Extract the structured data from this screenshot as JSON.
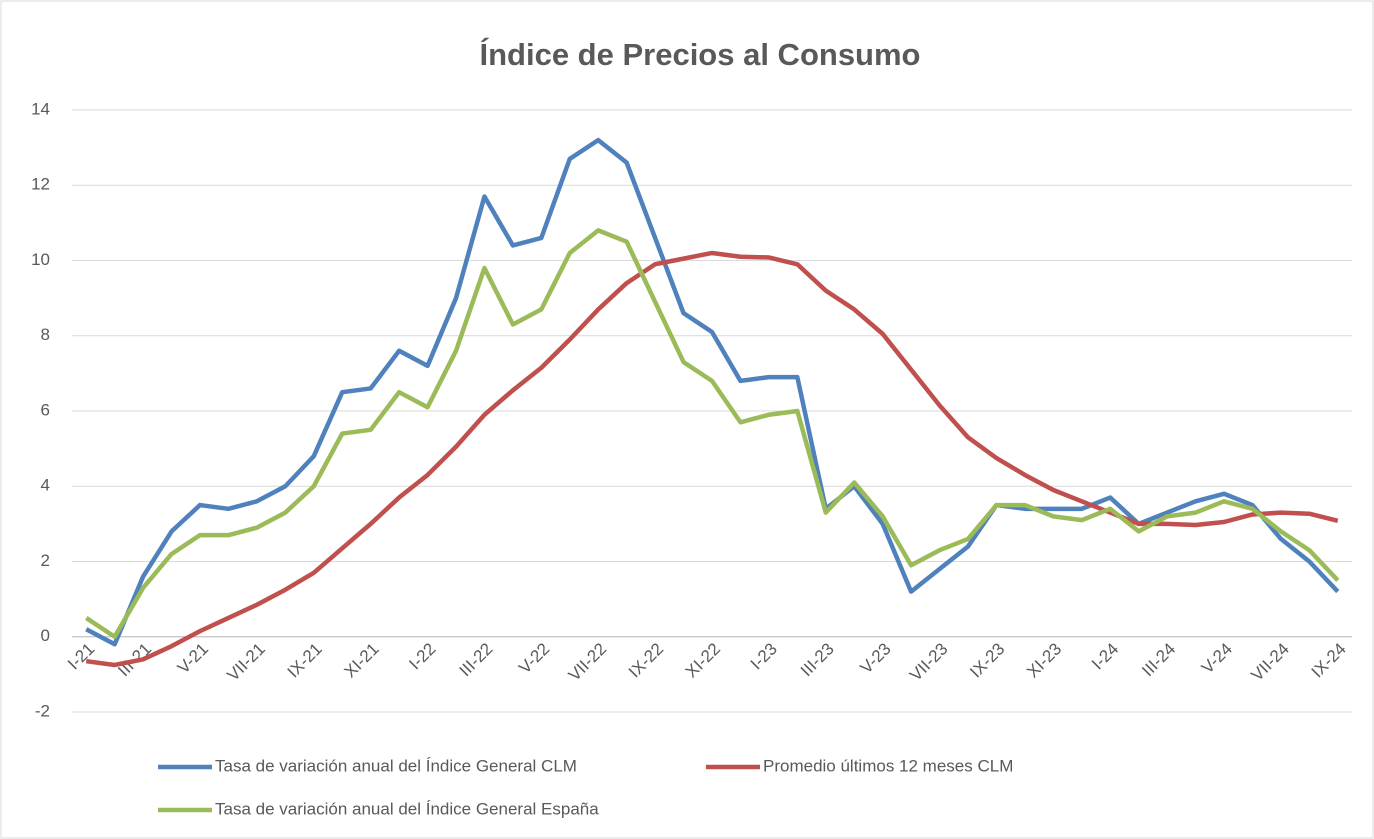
{
  "chart_data": {
    "type": "line",
    "title": "Índice de Precios al Consumo",
    "categories": [
      "I-21",
      null,
      "III-21",
      null,
      "V-21",
      null,
      "VII-21",
      null,
      "IX-21",
      null,
      "XI-21",
      null,
      "I-22",
      null,
      "III-22",
      null,
      "V-22",
      null,
      "VII-22",
      null,
      "IX-22",
      null,
      "XI-22",
      null,
      "I-23",
      null,
      "III-23",
      null,
      "V-23",
      null,
      "VII-23",
      null,
      "IX-23",
      null,
      "XI-23",
      null,
      "I-24",
      null,
      "III-24",
      null,
      "V-24",
      null,
      "VII-24",
      null,
      "IX-24"
    ],
    "series": [
      {
        "name": "Tasa de variación anual del Índice General CLM",
        "color": "#4f81bd",
        "values": [
          0.2,
          -0.2,
          1.6,
          2.8,
          3.5,
          3.4,
          3.6,
          4.0,
          4.8,
          6.5,
          6.6,
          7.6,
          7.2,
          9.0,
          11.7,
          10.4,
          10.6,
          12.7,
          13.2,
          12.6,
          10.6,
          8.6,
          8.1,
          6.8,
          6.9,
          6.9,
          3.4,
          4.0,
          3.0,
          1.2,
          1.8,
          2.4,
          3.5,
          3.4,
          3.4,
          3.4,
          3.7,
          3.0,
          3.3,
          3.6,
          3.8,
          3.5,
          2.6,
          2.0,
          1.2
        ]
      },
      {
        "name": "Promedio últimos 12 meses CLM",
        "color": "#c0504d",
        "values": [
          -0.65,
          -0.75,
          -0.6,
          -0.25,
          0.15,
          0.5,
          0.85,
          1.25,
          1.7,
          2.35,
          3.0,
          3.7,
          4.3,
          5.05,
          5.9,
          6.55,
          7.15,
          7.9,
          8.7,
          9.4,
          9.9,
          10.05,
          10.2,
          10.1,
          10.08,
          9.9,
          9.2,
          8.7,
          8.05,
          7.1,
          6.15,
          5.3,
          4.75,
          4.3,
          3.9,
          3.6,
          3.3,
          3.0,
          3.0,
          2.97,
          3.05,
          3.25,
          3.3,
          3.27,
          3.08
        ]
      },
      {
        "name": "Tasa de variación anual del Índice General España",
        "color": "#9bbb59",
        "values": [
          0.5,
          0.0,
          1.3,
          2.2,
          2.7,
          2.7,
          2.9,
          3.3,
          4.0,
          5.4,
          5.5,
          6.5,
          6.1,
          7.6,
          9.8,
          8.3,
          8.7,
          10.2,
          10.8,
          10.5,
          8.9,
          7.3,
          6.8,
          5.7,
          5.9,
          6.0,
          3.3,
          4.1,
          3.2,
          1.9,
          2.3,
          2.6,
          3.5,
          3.5,
          3.2,
          3.1,
          3.4,
          2.8,
          3.2,
          3.3,
          3.6,
          3.4,
          2.8,
          2.3,
          1.5
        ]
      }
    ],
    "ylim": [
      -2,
      14
    ],
    "yticks": [
      -2,
      0,
      2,
      4,
      6,
      8,
      10,
      12,
      14
    ],
    "grid": true
  }
}
